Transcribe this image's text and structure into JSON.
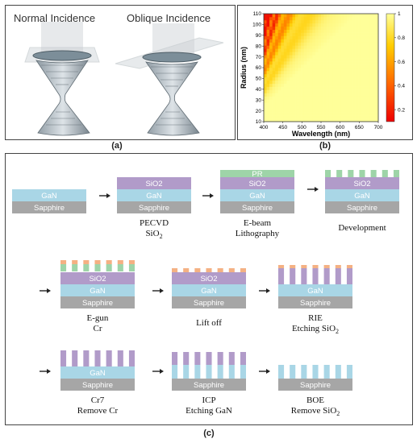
{
  "panel_a": {
    "label": "(a)",
    "left_title": "Normal Incidence",
    "right_title": "Oblique Incidence"
  },
  "panel_b": {
    "label": "(b)"
  },
  "panel_c": {
    "label": "(c)",
    "layers": {
      "sapphire": "Sapphire",
      "gan": "GaN",
      "sio2": "SiO2",
      "pr": "PR"
    },
    "steps": [
      {
        "line1": "",
        "line2": ""
      },
      {
        "line1": "PECVD",
        "line2": "SiO",
        "sub": "2"
      },
      {
        "line1": "E-beam",
        "line2": "Lithography"
      },
      {
        "line1": "Development",
        "line2": ""
      },
      {
        "line1": "E-gun",
        "line2": "Cr"
      },
      {
        "line1": "Lift off",
        "line2": ""
      },
      {
        "line1": "RIE",
        "line2": "Etching SiO",
        "sub": "2"
      },
      {
        "line1": "Cr7",
        "line2": "Remove Cr"
      },
      {
        "line1": "ICP",
        "line2": "Etching GaN"
      },
      {
        "line1": "BOE",
        "line2": "Remove SiO",
        "sub": "2"
      }
    ]
  },
  "chart_data": {
    "type": "heatmap",
    "xlabel": "Wavelength (nm)",
    "ylabel": "Radius (nm)",
    "xlim": [
      400,
      700
    ],
    "ylim": [
      10,
      110
    ],
    "xticks": [
      400,
      450,
      500,
      550,
      600,
      650,
      700
    ],
    "yticks": [
      10,
      20,
      30,
      40,
      50,
      60,
      70,
      80,
      90,
      100,
      110
    ],
    "colorbar_ticks": [
      0.2,
      0.4,
      0.6,
      0.8,
      1
    ],
    "colorbar_range": [
      0.1,
      1
    ],
    "colormap": [
      "#ee0000",
      "#ff6600",
      "#ffcc00",
      "#ffff99"
    ]
  },
  "colors": {
    "sapphire": "#a6a6a6",
    "gan": "#a9d6e6",
    "sio2": "#b19bc9",
    "pr": "#9ed4a8",
    "cr": "#f4b183"
  }
}
